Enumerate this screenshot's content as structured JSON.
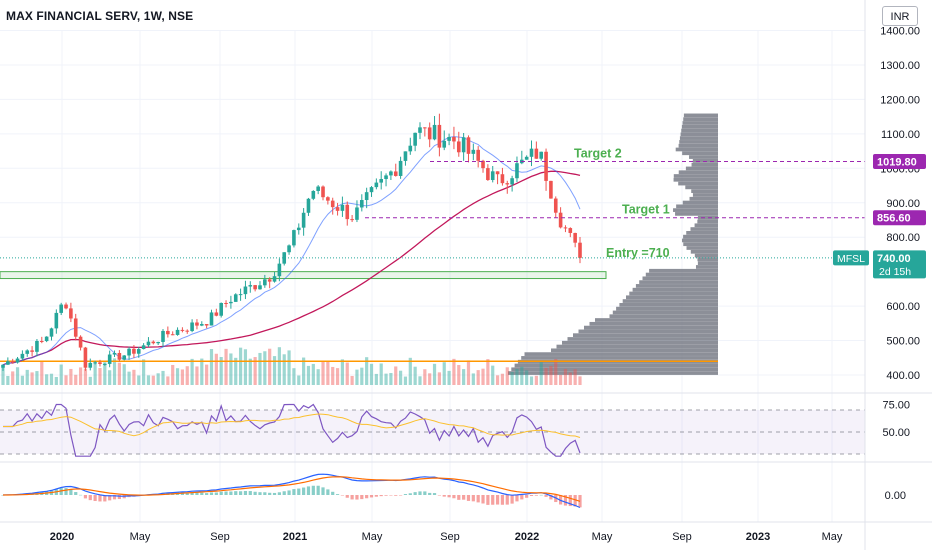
{
  "header": {
    "title": "MAX FINANCIAL SERV, 1W, NSE",
    "currency": "INR"
  },
  "colors": {
    "up": "#26a69a",
    "down": "#ef5350",
    "target_line": "#9c27b0",
    "entry_line": "#26a69a",
    "label_text": "#4caf50",
    "ma_200": "#c2185b",
    "ma_50": "#2962ff",
    "support": "#ff9800",
    "volume_profile": "#787b86",
    "rsi": "#7e57c2",
    "rsi_ma": "#fbc02d",
    "macd": "#2962ff",
    "signal": "#ff6d00"
  },
  "chart_data": {
    "type": "candlestick",
    "symbol": "MFSL",
    "exchange": "NSE",
    "interval": "1W",
    "price_axis": {
      "ticks": [
        "1400.00",
        "1300.00",
        "1200.00",
        "1100.00",
        "1000.00",
        "900.00",
        "800.00",
        "600.00",
        "500.00",
        "400.00"
      ],
      "range": [
        370,
        1420
      ]
    },
    "time_axis": {
      "ticks": [
        "2020",
        "May",
        "Sep",
        "2021",
        "May",
        "Sep",
        "2022",
        "May",
        "Sep",
        "2023",
        "May"
      ]
    },
    "price_tags": [
      {
        "name": "target-2-tag",
        "value": 1019.8,
        "text": "1019.80",
        "color": "#9c27b0"
      },
      {
        "name": "target-1-tag",
        "value": 856.6,
        "text": "856.60",
        "color": "#9c27b0"
      },
      {
        "name": "last-price-tag",
        "value": 740,
        "text": "740.00",
        "countdown": "2d 15h",
        "color": "#26a69a"
      }
    ],
    "symbol_tag": "MFSL",
    "annotations": [
      {
        "text": "Target 2",
        "price": 1019.8
      },
      {
        "text": "Target 1",
        "price": 856.6
      },
      {
        "text": "Entry =710",
        "price": 740
      }
    ],
    "support_zone": [
      680,
      700
    ],
    "support_line": 440,
    "ohlc_anchors": [
      {
        "date": "2019-11",
        "close": 430
      },
      {
        "date": "2020-01",
        "close": 500
      },
      {
        "date": "2020-02",
        "close": 620
      },
      {
        "date": "2020-03",
        "close": 430
      },
      {
        "date": "2020-05",
        "close": 460
      },
      {
        "date": "2020-07",
        "close": 520
      },
      {
        "date": "2020-09",
        "close": 560
      },
      {
        "date": "2020-10",
        "close": 620
      },
      {
        "date": "2020-12",
        "close": 690
      },
      {
        "date": "2021-01",
        "close": 780
      },
      {
        "date": "2021-02",
        "close": 940
      },
      {
        "date": "2021-04",
        "close": 860
      },
      {
        "date": "2021-06",
        "close": 1000
      },
      {
        "date": "2021-07",
        "close": 1110
      },
      {
        "date": "2021-09",
        "close": 1080
      },
      {
        "date": "2021-11",
        "close": 960
      },
      {
        "date": "2022-01",
        "close": 1050
      },
      {
        "date": "2022-02",
        "close": 860
      },
      {
        "date": "2022-03",
        "close": 740
      }
    ],
    "rsi": {
      "ticks": [
        "75.00",
        "50.00"
      ],
      "last": 31
    },
    "macd": {
      "ticks": [
        "0.00"
      ]
    }
  }
}
